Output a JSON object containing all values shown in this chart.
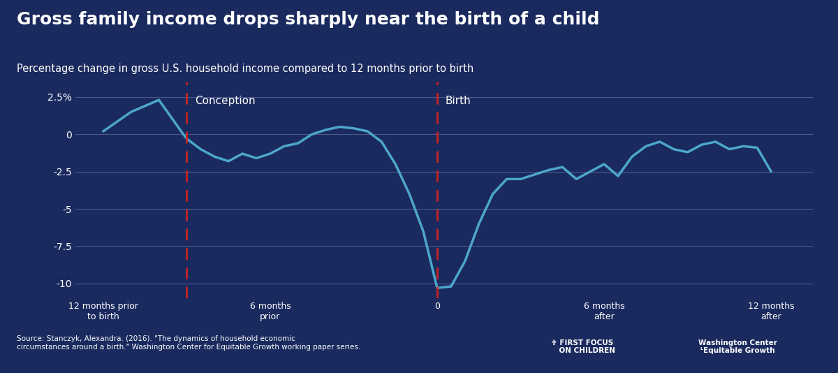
{
  "title": "Gross family income drops sharply near the birth of a child",
  "subtitle": "Percentage change in gross U.S. household income compared to 12 months prior to birth",
  "background_color": "#1a2a5e",
  "line_color": "#4da6cc",
  "line_width": 2.5,
  "grid_color": "#4a5a8a",
  "text_color": "#ffffff",
  "conception_line_x": -9,
  "birth_line_x": 0,
  "dashed_line_color": "#cc2222",
  "yticks": [
    2.5,
    0,
    -2.5,
    -5,
    -7.5,
    -10
  ],
  "ytick_labels": [
    "2.5%",
    "0",
    "-2.5",
    "-5",
    "-7.5",
    "-10"
  ],
  "xtick_positions": [
    -12,
    -6,
    0,
    6,
    12
  ],
  "xtick_labels": [
    "12 months prior\nto birth",
    "6 months\nprior",
    "0",
    "6 months\nafter",
    "12 months\nafter"
  ],
  "ylim": [
    -11,
    3.5
  ],
  "xlim": [
    -13,
    13.5
  ],
  "source_text": "Source: Stanczyk, Alexandra. (2016). \"The dynamics of household economic\ncircumstances around a birth.\" Washington Center for Equitable Growth working paper series.",
  "x_data": [
    -12,
    -11,
    -10,
    -9.2,
    -9,
    -8.5,
    -8,
    -7.5,
    -7,
    -6.5,
    -6,
    -5.5,
    -5,
    -4.5,
    -4,
    -3.5,
    -3,
    -2.5,
    -2,
    -1.5,
    -1,
    -0.5,
    0,
    0.5,
    1,
    1.5,
    2,
    2.5,
    3,
    3.5,
    4,
    4.5,
    5,
    5.5,
    6,
    6.5,
    7,
    7.5,
    8,
    8.5,
    9,
    9.5,
    10,
    10.5,
    11,
    11.5,
    12
  ],
  "y_data": [
    0.2,
    1.5,
    2.3,
    0.2,
    -0.3,
    -1.0,
    -1.5,
    -1.8,
    -1.3,
    -1.6,
    -1.3,
    -0.8,
    -0.6,
    0.0,
    0.3,
    0.5,
    0.4,
    0.2,
    -0.5,
    -2.0,
    -4.0,
    -6.5,
    -10.3,
    -10.2,
    -8.5,
    -6.0,
    -4.0,
    -3.0,
    -3.0,
    -2.7,
    -2.4,
    -2.2,
    -3.0,
    -2.5,
    -2.0,
    -2.8,
    -1.5,
    -0.8,
    -0.5,
    -1.0,
    -1.2,
    -0.7,
    -0.5,
    -1.0,
    -0.8,
    -0.9,
    -2.5
  ]
}
